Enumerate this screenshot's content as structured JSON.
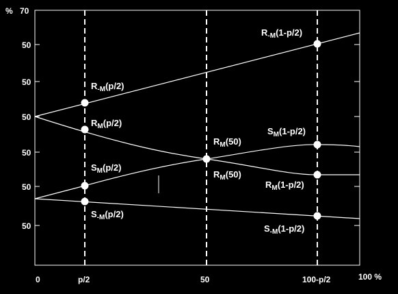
{
  "axes": {
    "y_unit": "%",
    "y_top": "70",
    "y_ticks": [
      "50",
      "50",
      "50",
      "50",
      "50",
      "50"
    ],
    "x_unit": "100 %",
    "x_ticks": [
      "0",
      "p/2",
      "50",
      "100-p/2"
    ]
  },
  "labels": [
    {
      "main": "R",
      "sub": "-M",
      "arg": "(1-p/2)"
    },
    {
      "main": "R",
      "sub": "-M",
      "arg": "(p/2)"
    },
    {
      "main": "R",
      "sub": "M",
      "arg": "(p/2)"
    },
    {
      "main": "R",
      "sub": "M",
      "arg": "(50)"
    },
    {
      "main": "S",
      "sub": "M",
      "arg": "(1-p/2)"
    },
    {
      "main": "S",
      "sub": "M",
      "arg": "(p/2)"
    },
    {
      "main": "R",
      "sub": "M",
      "arg": "(50)"
    },
    {
      "main": "R",
      "sub": "M",
      "arg": "(1-p/2)"
    },
    {
      "main": "S",
      "sub": "-M",
      "arg": "(p/2)"
    },
    {
      "main": "S",
      "sub": "-M",
      "arg": "(1-p/2)"
    }
  ],
  "colors": {
    "background": "#000000",
    "foreground": "#ffffff"
  }
}
